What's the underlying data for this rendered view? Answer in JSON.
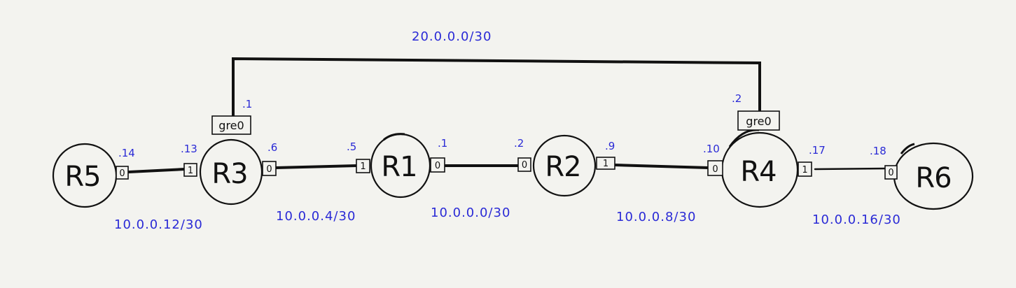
{
  "routers": {
    "r5": "R5",
    "r3": "R3",
    "r1": "R1",
    "r2": "R2",
    "r4": "R4",
    "r6": "R6"
  },
  "interfaces": {
    "r5_0": "0",
    "r3_1": "1",
    "r3_0": "0",
    "r1_1": "1",
    "r1_0": "0",
    "r2_0": "0",
    "r2_1": "1",
    "r4_0": "0",
    "r4_1": "1",
    "r6_0": "0",
    "r3_gre": "gre0",
    "r4_gre": "gre0"
  },
  "addresses": {
    "r5_0": ".14",
    "r3_1": ".13",
    "r3_0": ".6",
    "r1_1": ".5",
    "r1_0": ".1",
    "r2_0": ".2",
    "r2_1": ".9",
    "r4_0": ".10",
    "r4_1": ".17",
    "r6_0": ".18",
    "r3_gre": ".1",
    "r4_gre": ".2"
  },
  "networks": {
    "r5_r3": "10.0.0.12/30",
    "r3_r1": "10.0.0.4/30",
    "r1_r2": "10.0.0.0/30",
    "r2_r4": "10.0.0.8/30",
    "r4_r6": "10.0.0.16/30",
    "gre": "20.0.0.0/30"
  }
}
